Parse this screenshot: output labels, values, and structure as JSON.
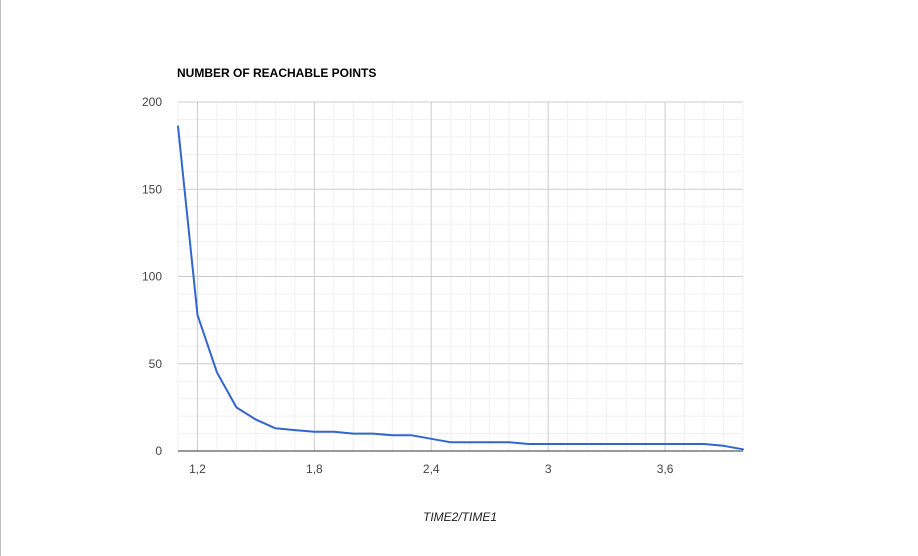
{
  "chart_data": {
    "type": "line",
    "title": "NUMBER OF REACHABLE POINTS",
    "xlabel": "TIME2/TIME1",
    "ylabel": "",
    "xlim": [
      1.1,
      4.0
    ],
    "ylim": [
      0,
      200
    ],
    "x_ticks": [
      1.2,
      1.8,
      2.4,
      3,
      3.6
    ],
    "x_tick_labels": [
      "1,2",
      "1,8",
      "2,4",
      "3",
      "3,6"
    ],
    "y_ticks": [
      0,
      50,
      100,
      150,
      200
    ],
    "y_tick_labels": [
      "0",
      "50",
      "100",
      "150",
      "200"
    ],
    "grid": true,
    "legend": "none",
    "series": [
      {
        "color": "#3366cc",
        "x": [
          1.1,
          1.2,
          1.3,
          1.4,
          1.5,
          1.6,
          1.7,
          1.8,
          1.9,
          2.0,
          2.1,
          2.2,
          2.3,
          2.4,
          2.5,
          2.6,
          2.7,
          2.8,
          2.9,
          3.0,
          3.1,
          3.2,
          3.3,
          3.4,
          3.5,
          3.6,
          3.7,
          3.8,
          3.9,
          4.0
        ],
        "y": [
          186,
          78,
          45,
          25,
          18,
          13,
          12,
          11,
          11,
          10,
          10,
          9,
          9,
          7,
          5,
          5,
          5,
          5,
          4,
          4,
          4,
          4,
          4,
          4,
          4,
          4,
          4,
          4,
          3,
          1
        ]
      }
    ]
  }
}
